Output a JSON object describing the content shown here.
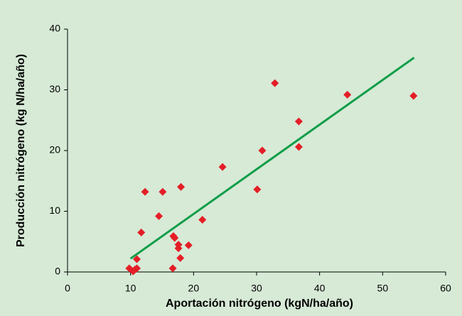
{
  "chart_data": {
    "type": "scatter",
    "xlabel": "Aportación nitrógeno (kgN/ha/año)",
    "ylabel": "Producción nitrógeno (kg N/ha/año)",
    "x": [
      9.8,
      10.4,
      10.7,
      11.0,
      11.0,
      11.7,
      12.3,
      14.5,
      15.1,
      18.0,
      16.8,
      17.0,
      17.6,
      17.6,
      16.7,
      17.9,
      19.2,
      21.4,
      24.6,
      30.1,
      30.9,
      32.9,
      44.4,
      36.7,
      36.7,
      54.9
    ],
    "values": [
      0.6,
      0.1,
      0.4,
      0.6,
      2.1,
      6.5,
      13.2,
      9.2,
      13.2,
      14.0,
      5.9,
      5.6,
      4.5,
      3.9,
      0.6,
      2.3,
      4.4,
      8.6,
      17.3,
      13.6,
      20.0,
      31.1,
      29.2,
      24.8,
      20.6,
      29.0
    ],
    "color": "#e41e26",
    "trendline": {
      "x": [
        10,
        55
      ],
      "values": [
        2.2,
        35.3
      ],
      "color": "#0f9d48"
    },
    "xlim": [
      0,
      60
    ],
    "xticks": [
      0,
      10,
      20,
      30,
      40,
      50,
      60
    ],
    "ylim": [
      0,
      40
    ],
    "yticks": [
      0,
      10,
      20,
      30,
      40
    ],
    "grid": false
  }
}
